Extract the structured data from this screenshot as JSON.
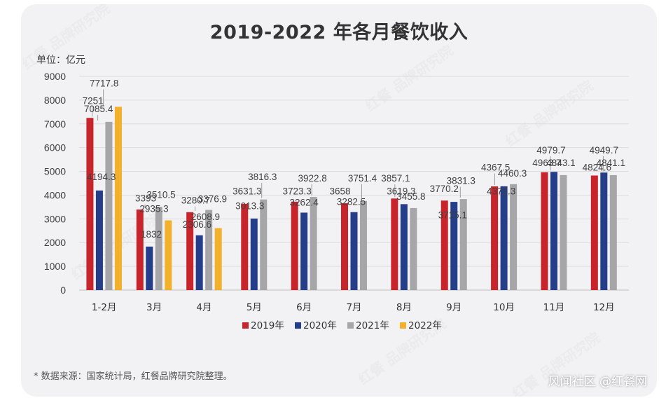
{
  "watermark": "红餐 品牌研究院",
  "footnote": "* 数据来源：国家统计局，红餐品牌研究院整理。",
  "credit": "风闻社区 @红餐网",
  "colors": {
    "s2019": "#c8242b",
    "s2020": "#253e8a",
    "s2021": "#a6a6a8",
    "s2022": "#f2b02b"
  },
  "chart_data": {
    "type": "bar",
    "title": "2019-2022 年各月餐饮收入",
    "ylabel": "单位：亿元",
    "xlabel": "",
    "ylim": [
      0,
      9000
    ],
    "yticks": [
      "0",
      "1000",
      "2000",
      "3000",
      "4000",
      "5000",
      "6000",
      "7000",
      "8000",
      "9000"
    ],
    "grid": true,
    "legend": "bottom",
    "categories": [
      "1-2月",
      "3月",
      "4月",
      "5月",
      "6月",
      "7月",
      "8月",
      "9月",
      "10月",
      "11月",
      "12月"
    ],
    "series": [
      {
        "name": "2019年",
        "values": [
          7251,
          3393,
          3280.7,
          3631.3,
          3723.3,
          3658,
          3857.1,
          3770.2,
          4367.5,
          4963.7,
          4824.6
        ],
        "labels": [
          "7251",
          "3393",
          "3280.7",
          "3631.3",
          "3723.3",
          "3658",
          "3857.1",
          "3770.2",
          "4367.5",
          "4963.7",
          "4824.6"
        ]
      },
      {
        "name": "2020年",
        "values": [
          4194.3,
          1832,
          2306.6,
          3013.3,
          3262.4,
          3282.5,
          3619.3,
          3715.1,
          4372.3,
          4979.7,
          4949.7
        ],
        "labels": [
          "4194.3",
          "1832",
          "2306.6",
          "3013.3",
          "3262.4",
          "3282.5",
          "3619.3",
          "3715.1",
          "4372.3",
          "4979.7",
          "4949.7"
        ]
      },
      {
        "name": "2021年",
        "values": [
          7085.4,
          3510.5,
          3376.9,
          3816.3,
          3922.8,
          3751.4,
          3455.8,
          3831.3,
          4460.3,
          4843.1,
          4841.1
        ],
        "labels": [
          "7085.4",
          "3510.5",
          "3376.9",
          "3816.3",
          "3922.8",
          "3751.4",
          "3455.8",
          "3831.3",
          "4460.3",
          "4843.1",
          "4841.1"
        ]
      },
      {
        "name": "2022年",
        "values": [
          7717.8,
          2935.3,
          2608.9,
          null,
          null,
          null,
          null,
          null,
          null,
          null,
          null
        ],
        "labels": [
          "7717.8",
          "2935.3",
          "2608.9",
          null,
          null,
          null,
          null,
          null,
          null,
          null,
          null
        ]
      }
    ]
  }
}
